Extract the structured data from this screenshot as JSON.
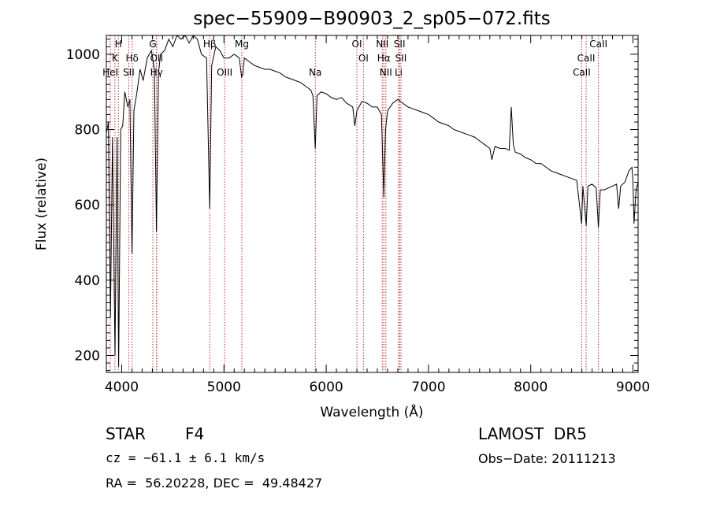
{
  "chart_data": {
    "type": "line",
    "title": "spec−55909−B90903_2_sp05−072.fits",
    "xlabel": "Wavelength (Å)",
    "ylabel": "Flux (relative)",
    "xlim": [
      3850,
      9050
    ],
    "ylim": [
      155,
      1050
    ],
    "xticks": [
      4000,
      5000,
      6000,
      7000,
      8000,
      9000
    ],
    "yticks": [
      200,
      400,
      600,
      800,
      1000
    ],
    "grid": false,
    "series": [
      {
        "color": "#000000",
        "points": [
          [
            3850,
            790
          ],
          [
            3870,
            820
          ],
          [
            3890,
            300
          ],
          [
            3910,
            780
          ],
          [
            3935,
            200
          ],
          [
            3955,
            780
          ],
          [
            3970,
            170
          ],
          [
            3990,
            800
          ],
          [
            4010,
            810
          ],
          [
            4030,
            900
          ],
          [
            4060,
            860
          ],
          [
            4080,
            880
          ],
          [
            4101,
            470
          ],
          [
            4120,
            850
          ],
          [
            4150,
            900
          ],
          [
            4180,
            960
          ],
          [
            4210,
            930
          ],
          [
            4250,
            990
          ],
          [
            4290,
            1010
          ],
          [
            4320,
            960
          ],
          [
            4340,
            530
          ],
          [
            4360,
            950
          ],
          [
            4380,
            1000
          ],
          [
            4420,
            1010
          ],
          [
            4460,
            1040
          ],
          [
            4500,
            1020
          ],
          [
            4540,
            1050
          ],
          [
            4580,
            1040
          ],
          [
            4620,
            1050
          ],
          [
            4660,
            1030
          ],
          [
            4700,
            1050
          ],
          [
            4740,
            1040
          ],
          [
            4780,
            1000
          ],
          [
            4830,
            990
          ],
          [
            4861,
            590
          ],
          [
            4880,
            970
          ],
          [
            4920,
            1020
          ],
          [
            4960,
            1010
          ],
          [
            5000,
            990
          ],
          [
            5050,
            990
          ],
          [
            5100,
            1000
          ],
          [
            5150,
            990
          ],
          [
            5172,
            940
          ],
          [
            5183,
            945
          ],
          [
            5200,
            990
          ],
          [
            5250,
            980
          ],
          [
            5300,
            970
          ],
          [
            5350,
            965
          ],
          [
            5400,
            960
          ],
          [
            5450,
            960
          ],
          [
            5500,
            955
          ],
          [
            5550,
            950
          ],
          [
            5600,
            940
          ],
          [
            5650,
            935
          ],
          [
            5700,
            930
          ],
          [
            5750,
            925
          ],
          [
            5800,
            915
          ],
          [
            5850,
            905
          ],
          [
            5870,
            890
          ],
          [
            5893,
            750
          ],
          [
            5910,
            890
          ],
          [
            5950,
            900
          ],
          [
            6000,
            895
          ],
          [
            6050,
            885
          ],
          [
            6100,
            880
          ],
          [
            6150,
            885
          ],
          [
            6200,
            870
          ],
          [
            6260,
            860
          ],
          [
            6280,
            810
          ],
          [
            6300,
            850
          ],
          [
            6350,
            875
          ],
          [
            6400,
            870
          ],
          [
            6450,
            860
          ],
          [
            6500,
            860
          ],
          [
            6540,
            840
          ],
          [
            6563,
            620
          ],
          [
            6580,
            800
          ],
          [
            6600,
            850
          ],
          [
            6650,
            870
          ],
          [
            6700,
            880
          ],
          [
            6750,
            870
          ],
          [
            6800,
            860
          ],
          [
            6850,
            855
          ],
          [
            6900,
            850
          ],
          [
            6950,
            845
          ],
          [
            7000,
            840
          ],
          [
            7050,
            830
          ],
          [
            7100,
            820
          ],
          [
            7150,
            815
          ],
          [
            7200,
            810
          ],
          [
            7250,
            800
          ],
          [
            7300,
            795
          ],
          [
            7350,
            790
          ],
          [
            7400,
            785
          ],
          [
            7450,
            780
          ],
          [
            7500,
            770
          ],
          [
            7550,
            760
          ],
          [
            7600,
            750
          ],
          [
            7620,
            720
          ],
          [
            7650,
            755
          ],
          [
            7700,
            750
          ],
          [
            7750,
            750
          ],
          [
            7790,
            745
          ],
          [
            7810,
            860
          ],
          [
            7830,
            760
          ],
          [
            7850,
            740
          ],
          [
            7900,
            735
          ],
          [
            7950,
            725
          ],
          [
            8000,
            720
          ],
          [
            8050,
            710
          ],
          [
            8100,
            710
          ],
          [
            8150,
            700
          ],
          [
            8200,
            690
          ],
          [
            8250,
            685
          ],
          [
            8300,
            680
          ],
          [
            8350,
            675
          ],
          [
            8400,
            670
          ],
          [
            8450,
            665
          ],
          [
            8498,
            550
          ],
          [
            8510,
            650
          ],
          [
            8542,
            545
          ],
          [
            8560,
            650
          ],
          [
            8600,
            655
          ],
          [
            8640,
            645
          ],
          [
            8662,
            540
          ],
          [
            8680,
            640
          ],
          [
            8720,
            640
          ],
          [
            8760,
            645
          ],
          [
            8800,
            650
          ],
          [
            8840,
            655
          ],
          [
            8860,
            590
          ],
          [
            8880,
            650
          ],
          [
            8920,
            660
          ],
          [
            8960,
            690
          ],
          [
            8990,
            700
          ],
          [
            9000,
            660
          ],
          [
            9010,
            550
          ],
          [
            9030,
            640
          ],
          [
            9050,
            660
          ]
        ]
      }
    ],
    "annotations": {
      "lines": [
        {
          "label": "H",
          "x": 3968,
          "row": 1
        },
        {
          "label": "K",
          "x": 3934,
          "row": 2
        },
        {
          "label": "HeI",
          "x": 3889,
          "row": 3
        },
        {
          "label": "Hδ",
          "x": 4102,
          "row": 2
        },
        {
          "label": "SII",
          "x": 4069,
          "row": 3
        },
        {
          "label": "G",
          "x": 4305,
          "row": 1
        },
        {
          "label": "OII",
          "x": 4341,
          "row": 2
        },
        {
          "label": "Hγ",
          "x": 4341,
          "row": 3
        },
        {
          "label": "Hβ",
          "x": 4861,
          "row": 1
        },
        {
          "label": "OIII",
          "x": 5007,
          "row": 3
        },
        {
          "label": "Mg",
          "x": 5175,
          "row": 1
        },
        {
          "label": "Na",
          "x": 5893,
          "row": 3
        },
        {
          "label": "OI",
          "x": 6300,
          "row": 1
        },
        {
          "label": "OI",
          "x": 6364,
          "row": 2
        },
        {
          "label": "NII",
          "x": 6548,
          "row": 1
        },
        {
          "label": "Hα",
          "x": 6563,
          "row": 2
        },
        {
          "label": "NII",
          "x": 6583,
          "row": 3
        },
        {
          "label": "SII",
          "x": 6717,
          "row": 1
        },
        {
          "label": "SII",
          "x": 6731,
          "row": 2
        },
        {
          "label": "Li",
          "x": 6708,
          "row": 3
        },
        {
          "label": "CaII",
          "x": 8662,
          "row": 1
        },
        {
          "label": "CaII",
          "x": 8542,
          "row": 2
        },
        {
          "label": "CaII",
          "x": 8498,
          "row": 3
        }
      ],
      "line_color": "#c03030"
    }
  },
  "info": {
    "object_class": "STAR",
    "subclass": "F4",
    "survey": "LAMOST  DR5",
    "cz": "cz = −61.1 ± 6.1 km/s",
    "obs_date": "Obs−Date: 20111213",
    "coords": "RA =  56.20228, DEC =  49.48427"
  }
}
